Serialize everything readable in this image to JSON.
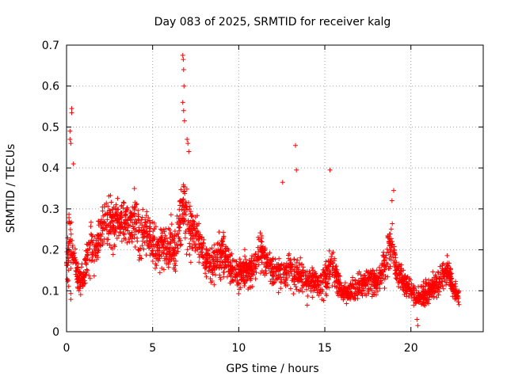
{
  "chart_data": {
    "type": "scatter",
    "title": "Day 083 of 2025, SRMTID for receiver kalg",
    "xlabel": "GPS time / hours",
    "ylabel": "SRMTID / TECUs",
    "xlim": [
      0,
      24.2
    ],
    "ylim": [
      0,
      0.7
    ],
    "grid": true,
    "marker": "+",
    "series_color": "#ff0000",
    "xticks": [
      0,
      5,
      10,
      15,
      20
    ],
    "xtick_labels": [
      "0",
      "5",
      "10",
      "15",
      "20"
    ],
    "yticks": [
      0,
      0.1,
      0.2,
      0.3,
      0.4,
      0.5,
      0.6,
      0.7
    ],
    "ytick_labels": [
      "0",
      "0.1",
      "0.2",
      "0.3",
      "0.4",
      "0.5",
      "0.6",
      "0.7"
    ],
    "envelope_hours": [
      0,
      0.2,
      0.4,
      0.6,
      0.8,
      1.0,
      1.3,
      1.6,
      2.0,
      2.3,
      2.6,
      3.0,
      3.3,
      3.6,
      4.0,
      4.3,
      4.6,
      5.0,
      5.3,
      5.6,
      6.0,
      6.3,
      6.6,
      6.8,
      7.0,
      7.3,
      7.6,
      8.0,
      8.3,
      8.6,
      9.0,
      9.3,
      9.6,
      10.0,
      10.3,
      10.6,
      11.0,
      11.3,
      11.6,
      12.0,
      12.3,
      12.6,
      13.0,
      13.3,
      13.6,
      14.0,
      14.3,
      14.6,
      15.0,
      15.3,
      15.6,
      16.0,
      16.3,
      16.6,
      17.0,
      17.3,
      17.6,
      18.0,
      18.3,
      18.6,
      18.9,
      19.2,
      19.5,
      19.8,
      20.1,
      20.4,
      20.7,
      21.0,
      21.3,
      21.6,
      21.9,
      22.2,
      22.5,
      22.8
    ],
    "envelope_mean": [
      0.17,
      0.22,
      0.18,
      0.14,
      0.13,
      0.14,
      0.2,
      0.2,
      0.24,
      0.28,
      0.27,
      0.28,
      0.27,
      0.26,
      0.28,
      0.22,
      0.25,
      0.22,
      0.2,
      0.21,
      0.22,
      0.2,
      0.28,
      0.3,
      0.28,
      0.23,
      0.24,
      0.18,
      0.16,
      0.17,
      0.19,
      0.18,
      0.15,
      0.14,
      0.15,
      0.15,
      0.16,
      0.2,
      0.17,
      0.15,
      0.15,
      0.14,
      0.15,
      0.13,
      0.14,
      0.12,
      0.13,
      0.11,
      0.12,
      0.16,
      0.14,
      0.1,
      0.09,
      0.1,
      0.11,
      0.12,
      0.13,
      0.12,
      0.14,
      0.18,
      0.22,
      0.15,
      0.13,
      0.11,
      0.1,
      0.08,
      0.09,
      0.1,
      0.11,
      0.12,
      0.14,
      0.15,
      0.1,
      0.09
    ],
    "envelope_spread": [
      0.08,
      0.15,
      0.06,
      0.05,
      0.05,
      0.06,
      0.1,
      0.07,
      0.08,
      0.08,
      0.09,
      0.08,
      0.08,
      0.08,
      0.1,
      0.07,
      0.08,
      0.07,
      0.06,
      0.07,
      0.07,
      0.07,
      0.1,
      0.12,
      0.1,
      0.07,
      0.07,
      0.06,
      0.06,
      0.06,
      0.08,
      0.06,
      0.05,
      0.05,
      0.05,
      0.05,
      0.06,
      0.07,
      0.05,
      0.05,
      0.05,
      0.05,
      0.06,
      0.05,
      0.05,
      0.05,
      0.05,
      0.04,
      0.05,
      0.08,
      0.05,
      0.03,
      0.03,
      0.04,
      0.04,
      0.04,
      0.05,
      0.04,
      0.05,
      0.07,
      0.09,
      0.05,
      0.04,
      0.04,
      0.03,
      0.03,
      0.04,
      0.04,
      0.04,
      0.05,
      0.05,
      0.05,
      0.03,
      0.03
    ],
    "notable_points": [
      [
        0.3,
        0.545
      ],
      [
        0.3,
        0.535
      ],
      [
        0.2,
        0.49
      ],
      [
        0.2,
        0.47
      ],
      [
        0.25,
        0.46
      ],
      [
        0.4,
        0.41
      ],
      [
        6.75,
        0.675
      ],
      [
        6.78,
        0.665
      ],
      [
        6.8,
        0.64
      ],
      [
        6.82,
        0.6
      ],
      [
        6.75,
        0.56
      ],
      [
        6.8,
        0.54
      ],
      [
        6.85,
        0.515
      ],
      [
        7.0,
        0.47
      ],
      [
        7.05,
        0.46
      ],
      [
        7.1,
        0.44
      ],
      [
        13.3,
        0.455
      ],
      [
        13.35,
        0.395
      ],
      [
        12.55,
        0.365
      ],
      [
        15.3,
        0.395
      ],
      [
        19.0,
        0.345
      ],
      [
        18.9,
        0.32
      ],
      [
        20.4,
        0.015
      ],
      [
        20.35,
        0.03
      ]
    ],
    "point_count": 2600
  }
}
